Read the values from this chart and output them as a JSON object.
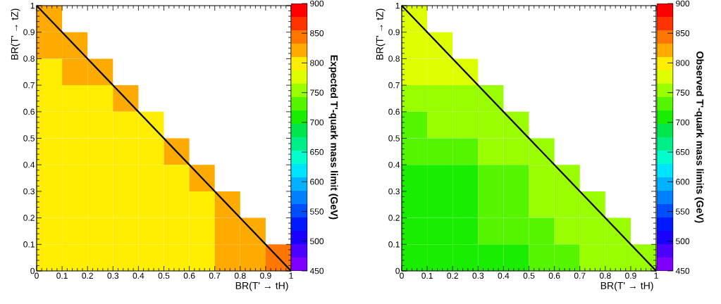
{
  "chart_data": [
    {
      "type": "heatmap",
      "clabel": "Expected T'-quark mass limit (GeV)",
      "xlabel": "BR(T' → tH)",
      "ylabel": "BR(T' → tZ)",
      "x": [
        0.05,
        0.15,
        0.25,
        0.35,
        0.45,
        0.55,
        0.65,
        0.75,
        0.85,
        0.95
      ],
      "y": [
        0.95,
        0.85,
        0.75,
        0.65,
        0.55,
        0.45,
        0.35,
        0.25,
        0.15,
        0.05
      ],
      "xlim": [
        0,
        1
      ],
      "ylim": [
        0,
        1
      ],
      "xticks": [
        0,
        0.1,
        0.2,
        0.3,
        0.4,
        0.5,
        0.6,
        0.7,
        0.8,
        0.9,
        1
      ],
      "yticks": [
        0,
        0.1,
        0.2,
        0.3,
        0.4,
        0.5,
        0.6,
        0.7,
        0.8,
        0.9,
        1
      ],
      "clim": [
        450,
        900
      ],
      "cticks": [
        450,
        500,
        550,
        600,
        650,
        700,
        750,
        800,
        850,
        900
      ],
      "colors": [
        "#7f00ff",
        "#4c00ff",
        "#1a00ff",
        "#0019ff",
        "#004cff",
        "#0080ff",
        "#00b2ff",
        "#00e5ff",
        "#00ffcc",
        "#00ee88",
        "#00e64d",
        "#1aee00",
        "#55f500",
        "#99ff00",
        "#ddff00",
        "#ffee00",
        "#ffaa00",
        "#ff7700",
        "#ff3300",
        "#ff0000"
      ],
      "cells": [
        [
          820,
          null,
          null,
          null,
          null,
          null,
          null,
          null,
          null,
          null
        ],
        [
          820,
          820,
          null,
          null,
          null,
          null,
          null,
          null,
          null,
          null
        ],
        [
          800,
          820,
          820,
          null,
          null,
          null,
          null,
          null,
          null,
          null
        ],
        [
          800,
          800,
          800,
          820,
          null,
          null,
          null,
          null,
          null,
          null
        ],
        [
          800,
          800,
          800,
          800,
          800,
          null,
          null,
          null,
          null,
          null
        ],
        [
          800,
          800,
          800,
          800,
          800,
          820,
          null,
          null,
          null,
          null
        ],
        [
          800,
          800,
          800,
          800,
          800,
          800,
          820,
          null,
          null,
          null
        ],
        [
          800,
          800,
          800,
          800,
          800,
          800,
          800,
          820,
          null,
          null
        ],
        [
          800,
          800,
          800,
          800,
          800,
          800,
          800,
          820,
          820,
          null
        ],
        [
          800,
          800,
          800,
          800,
          800,
          800,
          800,
          820,
          820,
          840
        ]
      ]
    },
    {
      "type": "heatmap",
      "clabel": "Observed T'-quark mass limits (GeV)",
      "xlabel": "BR(T' → tH)",
      "ylabel": "BR(T' → tZ)",
      "x": [
        0.05,
        0.15,
        0.25,
        0.35,
        0.45,
        0.55,
        0.65,
        0.75,
        0.85,
        0.95
      ],
      "y": [
        0.95,
        0.85,
        0.75,
        0.65,
        0.55,
        0.45,
        0.35,
        0.25,
        0.15,
        0.05
      ],
      "xlim": [
        0,
        1
      ],
      "ylim": [
        0,
        1
      ],
      "xticks": [
        0,
        0.1,
        0.2,
        0.3,
        0.4,
        0.5,
        0.6,
        0.7,
        0.8,
        0.9,
        1
      ],
      "yticks": [
        0,
        0.1,
        0.2,
        0.3,
        0.4,
        0.5,
        0.6,
        0.7,
        0.8,
        0.9,
        1
      ],
      "clim": [
        450,
        900
      ],
      "cticks": [
        450,
        500,
        550,
        600,
        650,
        700,
        750,
        800,
        850,
        900
      ],
      "colors": [
        "#7f00ff",
        "#4c00ff",
        "#1a00ff",
        "#0019ff",
        "#004cff",
        "#0080ff",
        "#00b2ff",
        "#00e5ff",
        "#00ffcc",
        "#00ee88",
        "#00e64d",
        "#1aee00",
        "#55f500",
        "#99ff00",
        "#ddff00",
        "#ffee00",
        "#ffaa00",
        "#ff7700",
        "#ff3300",
        "#ff0000"
      ],
      "cells": [
        [
          775,
          null,
          null,
          null,
          null,
          null,
          null,
          null,
          null,
          null
        ],
        [
          775,
          775,
          null,
          null,
          null,
          null,
          null,
          null,
          null,
          null
        ],
        [
          775,
          775,
          775,
          null,
          null,
          null,
          null,
          null,
          null,
          null
        ],
        [
          755,
          755,
          755,
          755,
          null,
          null,
          null,
          null,
          null,
          null
        ],
        [
          730,
          755,
          755,
          755,
          755,
          null,
          null,
          null,
          null,
          null
        ],
        [
          730,
          730,
          730,
          755,
          755,
          755,
          null,
          null,
          null,
          null
        ],
        [
          710,
          710,
          710,
          730,
          730,
          755,
          755,
          null,
          null,
          null
        ],
        [
          710,
          710,
          710,
          730,
          730,
          755,
          755,
          755,
          null,
          null
        ],
        [
          710,
          710,
          710,
          730,
          730,
          730,
          755,
          755,
          755,
          null
        ],
        [
          710,
          710,
          710,
          710,
          710,
          730,
          730,
          755,
          755,
          755
        ]
      ]
    }
  ]
}
